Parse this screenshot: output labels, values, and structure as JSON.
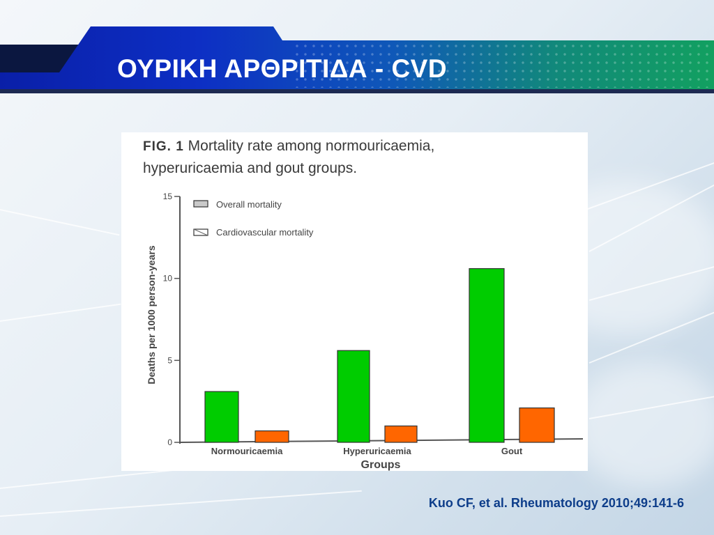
{
  "slide": {
    "title": "ΟΥΡΙΚΗ ΑΡΘΡΙΤΙΔΑ - CVD",
    "citation": "Kuo CF, et al. Rheumatology 2010;49:141-6"
  },
  "figure": {
    "label": "FIG. 1",
    "caption_line1": "Mortality rate among normouricaemia,",
    "caption_line2": "hyperuricaemia and gout groups."
  },
  "colors": {
    "overall": "#00cc00",
    "cardiovascular": "#ff6600",
    "title_text": "#ffffff",
    "citation_text": "#0d3d8a"
  },
  "chart_data": {
    "type": "bar",
    "categories": [
      "Normouricaemia",
      "Hyperuricaemia",
      "Gout"
    ],
    "series": [
      {
        "name": "Overall mortality",
        "values": [
          3.1,
          5.6,
          10.6
        ]
      },
      {
        "name": "Cardiovascular mortality",
        "values": [
          0.7,
          1.0,
          2.1
        ]
      }
    ],
    "xlabel": "Groups",
    "ylabel": "Deaths per 1000 person-years",
    "ylim": [
      0,
      15
    ],
    "yticks": [
      0,
      5,
      10,
      15
    ],
    "grid": false,
    "legend_position": "top-left"
  }
}
